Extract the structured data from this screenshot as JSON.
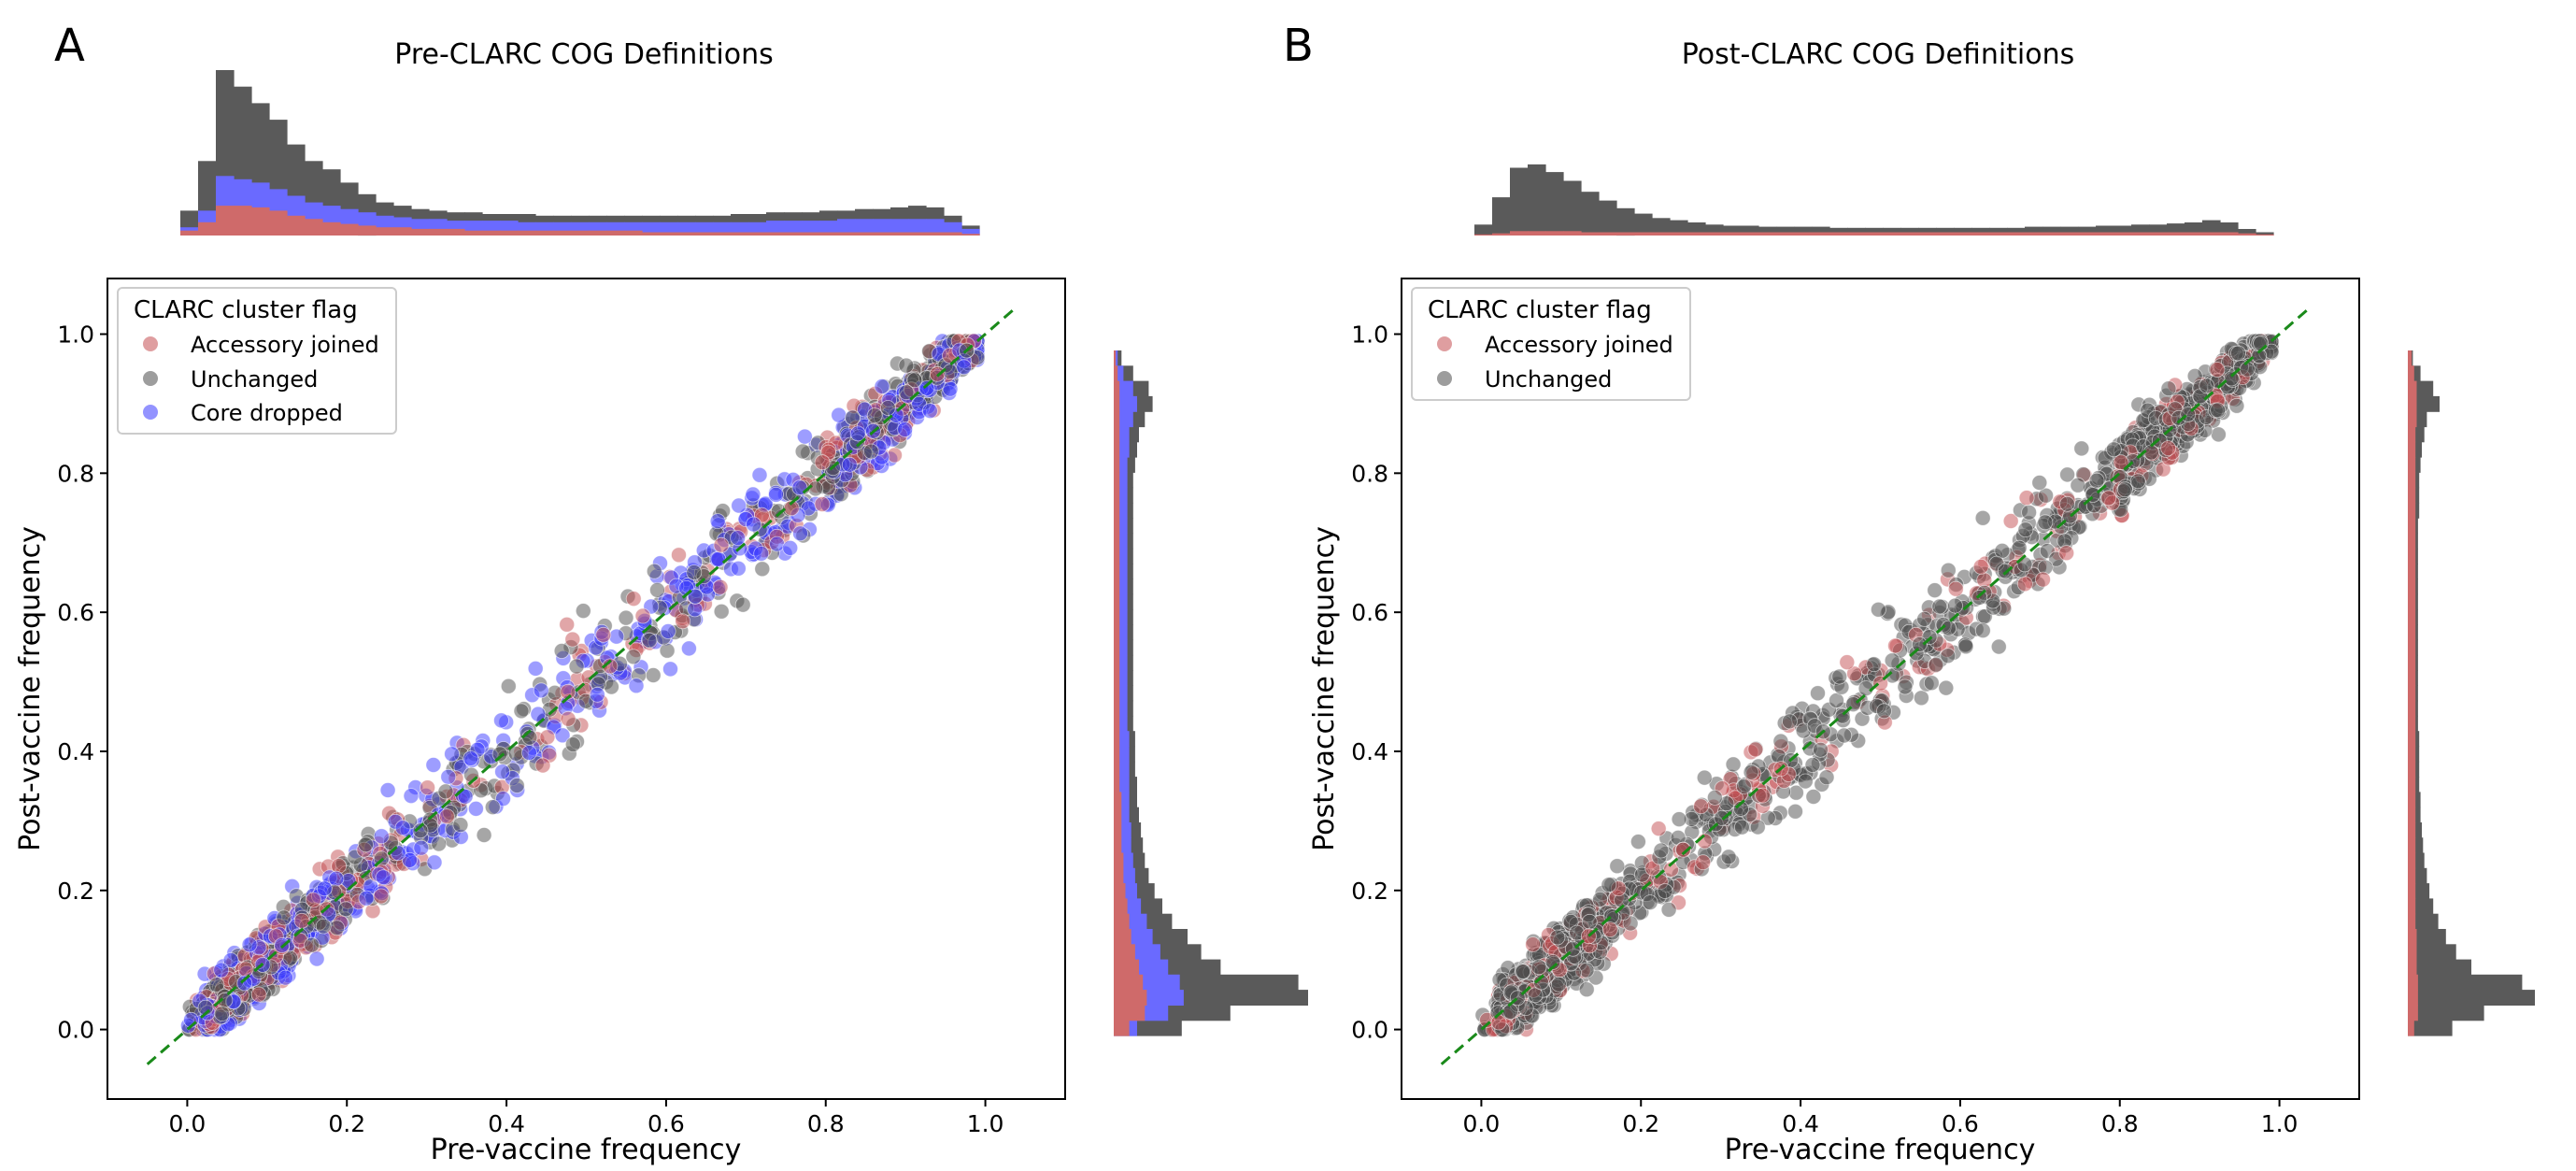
{
  "chart_data": [
    {
      "panel_letter": "A",
      "title": "Pre-CLARC COG Definitions",
      "type": "scatter",
      "xlabel": "Pre-vaccine frequency",
      "ylabel": "Post-vaccine frequency",
      "xlim": [
        -0.1,
        1.1
      ],
      "ylim": [
        -0.1,
        1.08
      ],
      "xticks": [
        "0.0",
        "0.2",
        "0.4",
        "0.6",
        "0.8",
        "1.0"
      ],
      "yticks": [
        "0.0",
        "0.2",
        "0.4",
        "0.6",
        "0.8",
        "1.0"
      ],
      "legend_title": "CLARC cluster flag",
      "legend_position": "top-left",
      "series": [
        {
          "name": "Accessory joined",
          "color": "#c44e52"
        },
        {
          "name": "Unchanged",
          "color": "#4d4d4d"
        },
        {
          "name": "Core dropped",
          "color": "#3b3bff"
        }
      ],
      "reference_line": {
        "style": "dashed",
        "color": "#1a8a1a",
        "from": [
          -0.05,
          -0.05
        ],
        "to": [
          1.04,
          1.04
        ]
      },
      "marginal_x": {
        "bins_from": 0.0,
        "bins_to": 1.0,
        "unchanged": [
          0.15,
          0.45,
          1.0,
          0.9,
          0.8,
          0.7,
          0.55,
          0.45,
          0.4,
          0.32,
          0.25,
          0.2,
          0.18,
          0.16,
          0.15,
          0.14,
          0.14,
          0.13,
          0.13,
          0.13,
          0.12,
          0.12,
          0.12,
          0.12,
          0.12,
          0.12,
          0.12,
          0.12,
          0.12,
          0.12,
          0.12,
          0.13,
          0.13,
          0.14,
          0.14,
          0.14,
          0.15,
          0.15,
          0.16,
          0.16,
          0.17,
          0.18,
          0.17,
          0.12,
          0.06
        ],
        "core_dropped": [
          0.05,
          0.15,
          0.36,
          0.34,
          0.32,
          0.28,
          0.24,
          0.2,
          0.18,
          0.16,
          0.14,
          0.12,
          0.11,
          0.1,
          0.1,
          0.09,
          0.09,
          0.09,
          0.09,
          0.08,
          0.08,
          0.08,
          0.08,
          0.08,
          0.08,
          0.08,
          0.08,
          0.08,
          0.08,
          0.08,
          0.08,
          0.08,
          0.08,
          0.09,
          0.09,
          0.09,
          0.09,
          0.1,
          0.1,
          0.1,
          0.1,
          0.1,
          0.1,
          0.08,
          0.04
        ],
        "accessory_joined": [
          0.03,
          0.08,
          0.18,
          0.18,
          0.17,
          0.15,
          0.12,
          0.1,
          0.08,
          0.07,
          0.06,
          0.05,
          0.05,
          0.04,
          0.04,
          0.04,
          0.03,
          0.03,
          0.03,
          0.03,
          0.03,
          0.03,
          0.03,
          0.03,
          0.03,
          0.03,
          0.02,
          0.02,
          0.02,
          0.02,
          0.02,
          0.02,
          0.02,
          0.02,
          0.02,
          0.02,
          0.02,
          0.02,
          0.02,
          0.02,
          0.02,
          0.02,
          0.02,
          0.02,
          0.01
        ]
      },
      "marginal_y": {
        "bins_from": 0.0,
        "bins_to": 1.0,
        "unchanged": [
          0.35,
          0.6,
          1.0,
          0.95,
          0.55,
          0.45,
          0.38,
          0.3,
          0.25,
          0.21,
          0.18,
          0.16,
          0.15,
          0.14,
          0.13,
          0.12,
          0.12,
          0.11,
          0.11,
          0.11,
          0.1,
          0.1,
          0.1,
          0.1,
          0.1,
          0.1,
          0.1,
          0.1,
          0.1,
          0.1,
          0.1,
          0.1,
          0.1,
          0.1,
          0.1,
          0.1,
          0.1,
          0.11,
          0.12,
          0.13,
          0.16,
          0.2,
          0.18,
          0.1,
          0.04
        ],
        "core_dropped": [
          0.12,
          0.28,
          0.36,
          0.34,
          0.28,
          0.24,
          0.2,
          0.17,
          0.14,
          0.12,
          0.11,
          0.1,
          0.09,
          0.09,
          0.08,
          0.08,
          0.08,
          0.08,
          0.08,
          0.08,
          0.07,
          0.07,
          0.07,
          0.07,
          0.07,
          0.07,
          0.07,
          0.07,
          0.07,
          0.07,
          0.07,
          0.07,
          0.07,
          0.07,
          0.07,
          0.07,
          0.07,
          0.07,
          0.08,
          0.08,
          0.1,
          0.12,
          0.1,
          0.05,
          0.02
        ],
        "accessory_joined": [
          0.08,
          0.16,
          0.17,
          0.15,
          0.13,
          0.11,
          0.09,
          0.08,
          0.07,
          0.06,
          0.05,
          0.05,
          0.04,
          0.04,
          0.04,
          0.04,
          0.03,
          0.03,
          0.03,
          0.03,
          0.03,
          0.03,
          0.03,
          0.03,
          0.03,
          0.03,
          0.03,
          0.03,
          0.03,
          0.03,
          0.03,
          0.03,
          0.03,
          0.03,
          0.03,
          0.03,
          0.03,
          0.03,
          0.03,
          0.03,
          0.03,
          0.03,
          0.03,
          0.02,
          0.01
        ]
      }
    },
    {
      "panel_letter": "B",
      "title": "Post-CLARC COG Definitions",
      "type": "scatter",
      "xlabel": "Pre-vaccine frequency",
      "ylabel": "Post-vaccine frequency",
      "xlim": [
        -0.1,
        1.1
      ],
      "ylim": [
        -0.1,
        1.08
      ],
      "xticks": [
        "0.0",
        "0.2",
        "0.4",
        "0.6",
        "0.8",
        "1.0"
      ],
      "yticks": [
        "0.0",
        "0.2",
        "0.4",
        "0.6",
        "0.8",
        "1.0"
      ],
      "legend_title": "CLARC cluster flag",
      "legend_position": "top-left",
      "series": [
        {
          "name": "Accessory joined",
          "color": "#c44e52"
        },
        {
          "name": "Unchanged",
          "color": "#4d4d4d"
        }
      ],
      "reference_line": {
        "style": "dashed",
        "color": "#1a8a1a",
        "from": [
          -0.05,
          -0.05
        ],
        "to": [
          1.04,
          1.04
        ]
      },
      "marginal_x": {
        "bins_from": 0.0,
        "bins_to": 1.0,
        "unchanged": [
          0.1,
          0.35,
          0.62,
          0.65,
          0.58,
          0.5,
          0.4,
          0.32,
          0.25,
          0.2,
          0.16,
          0.14,
          0.12,
          0.1,
          0.09,
          0.09,
          0.08,
          0.08,
          0.08,
          0.08,
          0.07,
          0.07,
          0.07,
          0.07,
          0.07,
          0.07,
          0.07,
          0.07,
          0.07,
          0.07,
          0.07,
          0.08,
          0.08,
          0.08,
          0.08,
          0.09,
          0.09,
          0.1,
          0.1,
          0.11,
          0.12,
          0.14,
          0.12,
          0.06,
          0.03
        ],
        "accessory_joined": [
          0.01,
          0.02,
          0.04,
          0.04,
          0.04,
          0.04,
          0.03,
          0.03,
          0.03,
          0.03,
          0.03,
          0.03,
          0.03,
          0.03,
          0.03,
          0.03,
          0.03,
          0.03,
          0.03,
          0.03,
          0.03,
          0.03,
          0.03,
          0.03,
          0.03,
          0.03,
          0.03,
          0.03,
          0.03,
          0.03,
          0.03,
          0.03,
          0.03,
          0.03,
          0.03,
          0.03,
          0.03,
          0.03,
          0.03,
          0.03,
          0.03,
          0.03,
          0.03,
          0.02,
          0.01
        ]
      },
      "marginal_y": {
        "bins_from": 0.0,
        "bins_to": 1.0,
        "unchanged": [
          0.35,
          0.6,
          1.0,
          0.9,
          0.5,
          0.38,
          0.3,
          0.24,
          0.2,
          0.17,
          0.15,
          0.13,
          0.12,
          0.11,
          0.1,
          0.1,
          0.09,
          0.09,
          0.09,
          0.09,
          0.08,
          0.08,
          0.08,
          0.08,
          0.08,
          0.08,
          0.08,
          0.08,
          0.08,
          0.08,
          0.08,
          0.08,
          0.08,
          0.08,
          0.09,
          0.09,
          0.09,
          0.1,
          0.11,
          0.13,
          0.15,
          0.25,
          0.2,
          0.1,
          0.04
        ],
        "accessory_joined": [
          0.05,
          0.08,
          0.08,
          0.08,
          0.07,
          0.07,
          0.07,
          0.06,
          0.06,
          0.06,
          0.06,
          0.06,
          0.06,
          0.06,
          0.06,
          0.06,
          0.06,
          0.06,
          0.06,
          0.06,
          0.06,
          0.06,
          0.06,
          0.06,
          0.06,
          0.06,
          0.06,
          0.06,
          0.06,
          0.06,
          0.06,
          0.06,
          0.06,
          0.06,
          0.06,
          0.06,
          0.06,
          0.06,
          0.06,
          0.06,
          0.07,
          0.07,
          0.07,
          0.05,
          0.03
        ]
      }
    }
  ]
}
